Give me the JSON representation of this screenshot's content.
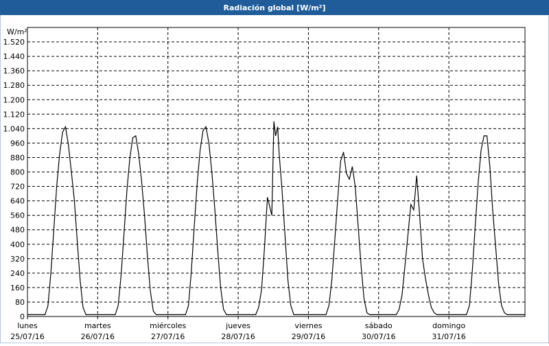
{
  "chart_data": {
    "type": "line",
    "title": "Radiación global [W/m²]",
    "y_unit": "W/m²",
    "xlim": [
      0,
      170
    ],
    "ylim": [
      0,
      1600
    ],
    "xticks": [
      {
        "value": 0,
        "label": "lunes",
        "date": "25/07/16"
      },
      {
        "value": 24,
        "label": "martes",
        "date": "26/07/16"
      },
      {
        "value": 48,
        "label": "miércoles",
        "date": "27/07/16"
      },
      {
        "value": 72,
        "label": "jueves",
        "date": "28/07/16"
      },
      {
        "value": 96,
        "label": "viernes",
        "date": "29/07/16"
      },
      {
        "value": 120,
        "label": "sábado",
        "date": "30/07/16"
      },
      {
        "value": 144,
        "label": "domingo",
        "date": "31/07/16"
      }
    ],
    "yticks": [
      0,
      80,
      160,
      240,
      320,
      400,
      480,
      560,
      640,
      720,
      800,
      880,
      960,
      {
        "value": 1040,
        "label": "1.040"
      },
      {
        "value": 1120,
        "label": "1.120"
      },
      {
        "value": 1200,
        "label": "1.200"
      },
      {
        "value": 1280,
        "label": "1.280"
      },
      {
        "value": 1360,
        "label": "1.360"
      },
      {
        "value": 1440,
        "label": "1.440"
      },
      {
        "value": 1520,
        "label": "1.520"
      }
    ],
    "grid": true,
    "series": [
      {
        "color": "#000000",
        "x": [
          0,
          6,
          7,
          8,
          9,
          10,
          11,
          12,
          13,
          14,
          15,
          16,
          17,
          18,
          19,
          20,
          30,
          31,
          32,
          33,
          34,
          35,
          36,
          37,
          38,
          39,
          40,
          41,
          42,
          43,
          44,
          54,
          55,
          56,
          57,
          58,
          59,
          60,
          61,
          62,
          63,
          64,
          65,
          66,
          67,
          68,
          78,
          79,
          80,
          81,
          82,
          83.5,
          84.2,
          84.8,
          85.5,
          86,
          87,
          88,
          89,
          90,
          91,
          102,
          103,
          104,
          105,
          106,
          107,
          108,
          109,
          110,
          111,
          112,
          113,
          114,
          115,
          116,
          117,
          126,
          127,
          128,
          129,
          130,
          131,
          132,
          133,
          134,
          135,
          136,
          137,
          138,
          139,
          140,
          150,
          151,
          152,
          153,
          154,
          155,
          156,
          157,
          158,
          159,
          160,
          161,
          162,
          163,
          164,
          170
        ],
        "values": [
          10,
          10,
          60,
          240,
          480,
          720,
          900,
          1020,
          1050,
          950,
          800,
          650,
          420,
          200,
          50,
          10,
          10,
          60,
          230,
          460,
          700,
          880,
          990,
          1000,
          900,
          750,
          560,
          330,
          140,
          30,
          10,
          10,
          60,
          250,
          500,
          740,
          920,
          1030,
          1050,
          960,
          800,
          600,
          370,
          160,
          40,
          10,
          10,
          50,
          150,
          380,
          660,
          560,
          1080,
          1000,
          1050,
          900,
          700,
          450,
          200,
          60,
          10,
          10,
          60,
          200,
          420,
          650,
          860,
          910,
          790,
          760,
          830,
          720,
          500,
          280,
          100,
          20,
          10,
          10,
          40,
          120,
          280,
          450,
          620,
          590,
          780,
          560,
          320,
          210,
          120,
          50,
          20,
          10,
          10,
          60,
          250,
          500,
          740,
          920,
          1000,
          1000,
          830,
          580,
          380,
          180,
          60,
          20,
          10,
          10
        ]
      }
    ]
  }
}
